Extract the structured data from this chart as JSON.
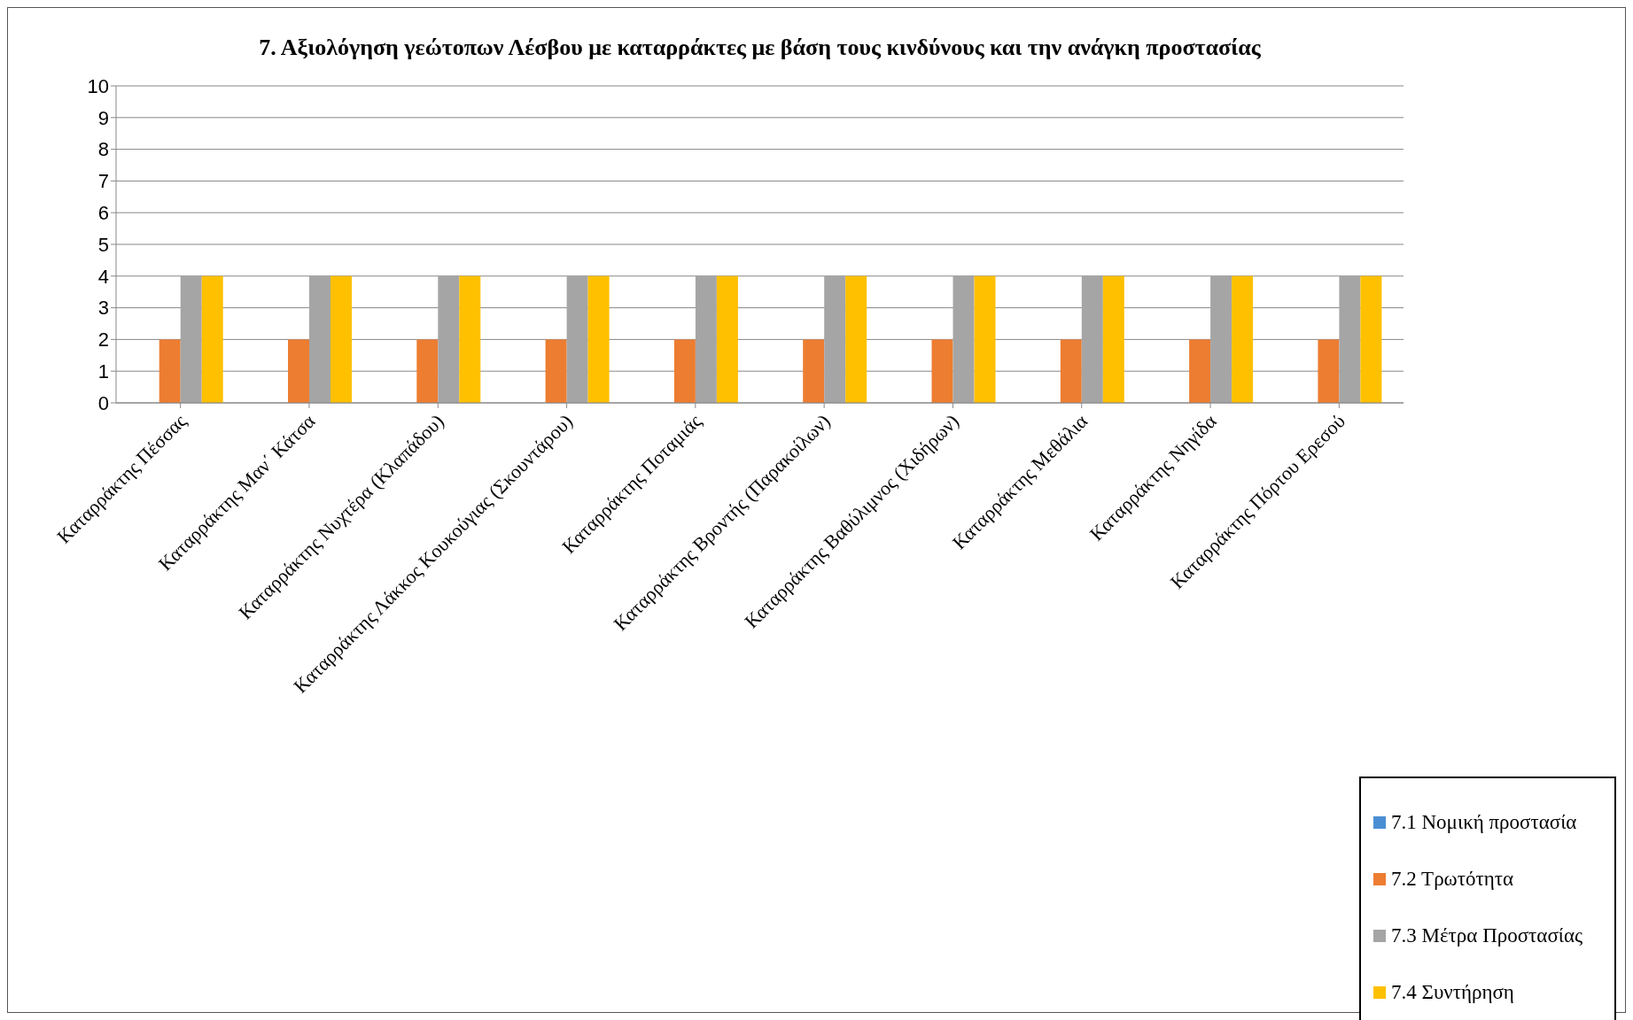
{
  "chart_data": {
    "type": "bar",
    "title": "7. Αξιολόγηση γεώτοπων Λέσβου με καταρράκτες με βάση τους κινδύνους και την ανάγκη προστασίας",
    "categories": [
      "Καταρράκτης Πέσσας",
      "Καταρράκτης Μαν΄ Κάτσα",
      "Καταρράκτης Νυχτέρα (Κλαπάδου)",
      "Καταρράκτης Λάκκος Κουκούγιας (Σκουντάρου)",
      "Καταρράκτης Ποταμιάς",
      "Καταρράκτης Βροντής (Παρακοίλων)",
      "Καταρράκτης Βαθύλιμνος (Χιδήρων)",
      "Καταρράκτης Μεθάλια",
      "Καταρράκτης Νηγίδα",
      "Καταρράκτης Πόρτου Ερεσού"
    ],
    "series": [
      {
        "name": "7.1 Νομική προστασία",
        "color": "#4a8fd4",
        "values": [
          0,
          0,
          0,
          0,
          0,
          0,
          0,
          0,
          0,
          0
        ]
      },
      {
        "name": "7.2 Τρωτότητα",
        "color": "#ed7d31",
        "values": [
          2,
          2,
          2,
          2,
          2,
          2,
          2,
          2,
          2,
          2
        ]
      },
      {
        "name": "7.3 Μέτρα Προστασίας",
        "color": "#a5a5a5",
        "values": [
          4,
          4,
          4,
          4,
          4,
          4,
          4,
          4,
          4,
          4
        ]
      },
      {
        "name": "7.4 Συντήρηση",
        "color": "#ffc000",
        "values": [
          4,
          4,
          4,
          4,
          4,
          4,
          4,
          4,
          4,
          4
        ]
      }
    ],
    "ylim": [
      0,
      10
    ],
    "yticks": [
      0,
      1,
      2,
      3,
      4,
      5,
      6,
      7,
      8,
      9,
      10
    ],
    "grid": "y",
    "legend": "bottom right"
  }
}
